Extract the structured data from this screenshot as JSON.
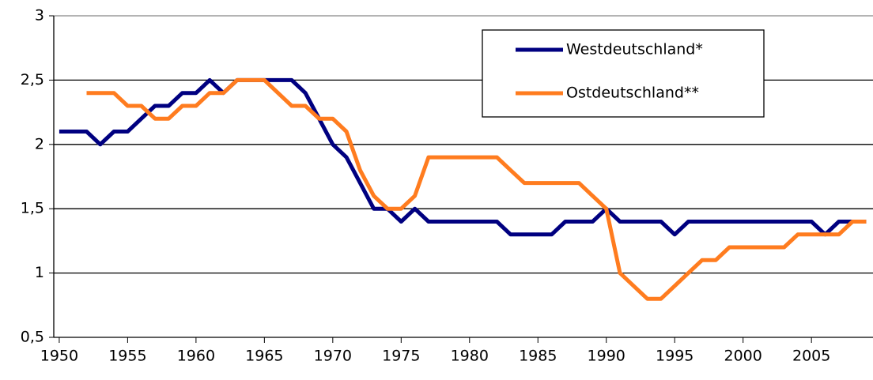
{
  "chart_data": {
    "type": "line",
    "x": [
      1950,
      1951,
      1952,
      1953,
      1954,
      1955,
      1956,
      1957,
      1958,
      1959,
      1960,
      1961,
      1962,
      1963,
      1964,
      1965,
      1966,
      1967,
      1968,
      1969,
      1970,
      1971,
      1972,
      1973,
      1974,
      1975,
      1976,
      1977,
      1978,
      1979,
      1980,
      1981,
      1982,
      1983,
      1984,
      1985,
      1986,
      1987,
      1988,
      1989,
      1990,
      1991,
      1992,
      1993,
      1994,
      1995,
      1996,
      1997,
      1998,
      1999,
      2000,
      2001,
      2002,
      2003,
      2004,
      2005,
      2006,
      2007,
      2008,
      2009
    ],
    "series": [
      {
        "name": "Westdeutschland*",
        "color": "#000080",
        "values": [
          2.1,
          2.1,
          2.1,
          2.0,
          2.1,
          2.1,
          2.2,
          2.3,
          2.3,
          2.4,
          2.4,
          2.5,
          2.4,
          2.5,
          2.5,
          2.5,
          2.5,
          2.5,
          2.4,
          2.2,
          2.0,
          1.9,
          1.7,
          1.5,
          1.5,
          1.4,
          1.5,
          1.4,
          1.4,
          1.4,
          1.4,
          1.4,
          1.4,
          1.3,
          1.3,
          1.3,
          1.3,
          1.4,
          1.4,
          1.4,
          1.5,
          1.4,
          1.4,
          1.4,
          1.4,
          1.3,
          1.4,
          1.4,
          1.4,
          1.4,
          1.4,
          1.4,
          1.4,
          1.4,
          1.4,
          1.4,
          1.3,
          1.4,
          1.4,
          1.4
        ]
      },
      {
        "name": "Ostdeutschland**",
        "color": "#ff7c1f",
        "values": [
          null,
          null,
          2.4,
          2.4,
          2.4,
          2.3,
          2.3,
          2.2,
          2.2,
          2.3,
          2.3,
          2.4,
          2.4,
          2.5,
          2.5,
          2.5,
          2.4,
          2.3,
          2.3,
          2.2,
          2.2,
          2.1,
          1.8,
          1.6,
          1.5,
          1.5,
          1.6,
          1.9,
          1.9,
          1.9,
          1.9,
          1.9,
          1.9,
          1.8,
          1.7,
          1.7,
          1.7,
          1.7,
          1.7,
          1.6,
          1.5,
          1.0,
          0.9,
          0.8,
          0.8,
          0.9,
          1.0,
          1.1,
          1.1,
          1.2,
          1.2,
          1.2,
          1.2,
          1.2,
          1.3,
          1.3,
          1.3,
          1.3,
          1.4,
          1.4
        ]
      }
    ],
    "xlim": [
      1949.6,
      2009.5
    ],
    "xticks": [
      1950,
      1955,
      1960,
      1965,
      1970,
      1975,
      1980,
      1985,
      1990,
      1995,
      2000,
      2005
    ],
    "ylim": [
      0.5,
      3
    ],
    "yticks": [
      {
        "value": 0.5,
        "label": "0,5"
      },
      1,
      {
        "value": 1.5,
        "label": "1,5"
      },
      2,
      {
        "value": 2.5,
        "label": "2,5"
      },
      3
    ],
    "grid": true,
    "legend": "top-right"
  }
}
